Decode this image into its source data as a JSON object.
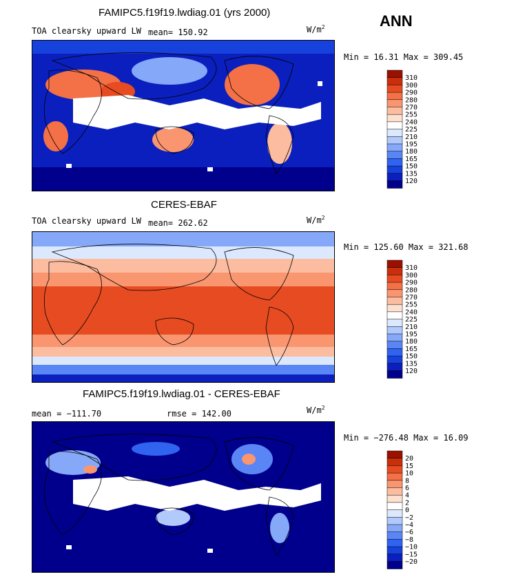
{
  "season": "ANN",
  "colors": {
    "scale": [
      "#00008c",
      "#0a1fbd",
      "#1741dc",
      "#2f63f0",
      "#5a86f5",
      "#86a8f8",
      "#b1c9fb",
      "#dbe8fd",
      "#ffffff",
      "#fde0cf",
      "#fbbca0",
      "#f99670",
      "#f47046",
      "#e74b22",
      "#c92f0d",
      "#9a1100"
    ],
    "land_line": "#000000"
  },
  "panels": [
    {
      "title": "FAMIPC5.f19f19.lwdiag.01 (yrs 2000)",
      "variable": "TOA clearsky upward LW",
      "mean_label": "mean= 150.92",
      "units": "W/m",
      "units_exp": "2",
      "minmax": "Min =  16.31 Max = 309.45",
      "colorbar": [
        "310",
        "300",
        "290",
        "280",
        "270",
        "255",
        "240",
        "225",
        "210",
        "195",
        "180",
        "165",
        "150",
        "135",
        "120"
      ]
    },
    {
      "title": "CERES-EBAF",
      "variable": "TOA clearsky upward LW",
      "mean_label": "mean= 262.62",
      "units": "W/m",
      "units_exp": "2",
      "minmax": "Min = 125.60 Max = 321.68",
      "colorbar": [
        "310",
        "300",
        "290",
        "280",
        "270",
        "255",
        "240",
        "225",
        "210",
        "195",
        "180",
        "165",
        "150",
        "135",
        "120"
      ]
    },
    {
      "title": "FAMIPC5.f19f19.lwdiag.01 - CERES-EBAF",
      "mean_label": "mean = −111.70",
      "rmse_label": "rmse = 142.00",
      "units": "W/m",
      "units_exp": "2",
      "minmax": "Min = −276.48 Max =  16.09",
      "colorbar": [
        "20",
        "15",
        "10",
        "8",
        "6",
        "4",
        "2",
        "0",
        "−2",
        "−4",
        "−6",
        "−8",
        "−10",
        "−15",
        "−20"
      ]
    }
  ],
  "chart_data": [
    {
      "type": "heatmap",
      "title": "FAMIPC5.f19f19.lwdiag.01 (yrs 2000)",
      "subtitle": "TOA clearsky upward LW",
      "units": "W/m2",
      "mean": 150.92,
      "min": 16.31,
      "max": 309.45,
      "levels": [
        120,
        135,
        150,
        165,
        180,
        195,
        210,
        225,
        240,
        255,
        270,
        280,
        290,
        300,
        310
      ],
      "grid": false,
      "legend": "right"
    },
    {
      "type": "heatmap",
      "title": "CERES-EBAF",
      "subtitle": "TOA clearsky upward LW",
      "units": "W/m2",
      "mean": 262.62,
      "min": 125.6,
      "max": 321.68,
      "levels": [
        120,
        135,
        150,
        165,
        180,
        195,
        210,
        225,
        240,
        255,
        270,
        280,
        290,
        300,
        310
      ],
      "grid": false,
      "legend": "right"
    },
    {
      "type": "heatmap",
      "title": "FAMIPC5.f19f19.lwdiag.01 - CERES-EBAF",
      "units": "W/m2",
      "mean": -111.7,
      "rmse": 142.0,
      "min": -276.48,
      "max": 16.09,
      "levels": [
        -20,
        -15,
        -10,
        -8,
        -6,
        -4,
        -2,
        0,
        2,
        4,
        6,
        8,
        10,
        15,
        20
      ],
      "grid": false,
      "legend": "right"
    }
  ]
}
